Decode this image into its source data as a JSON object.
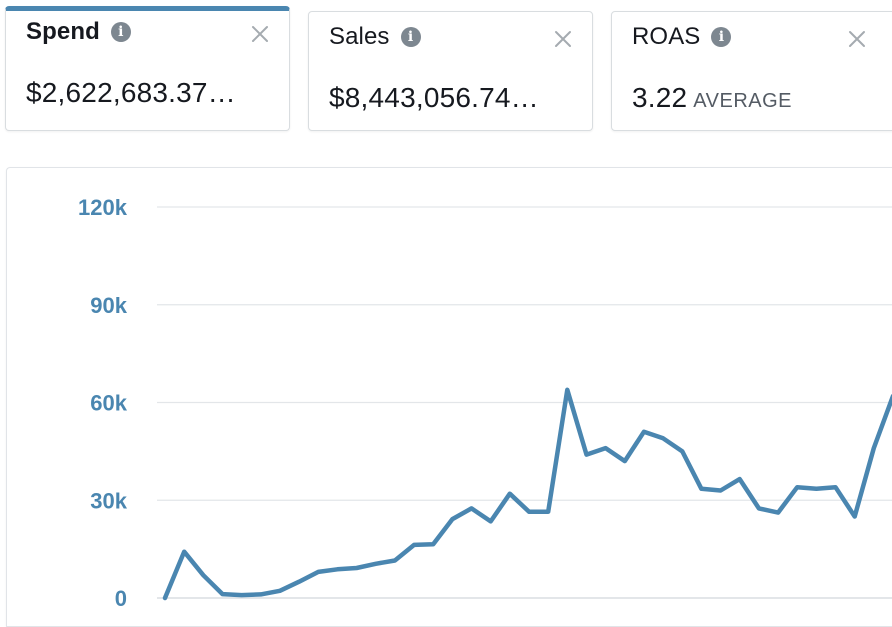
{
  "metrics": [
    {
      "title": "Spend",
      "value": "$2,622,683.37…",
      "unit": "",
      "active": true,
      "info_icon": "info-icon",
      "close_icon": "close-icon"
    },
    {
      "title": "Sales",
      "value": "$8,443,056.74…",
      "unit": "",
      "active": false,
      "info_icon": "info-icon",
      "close_icon": "close-icon"
    },
    {
      "title": "ROAS",
      "value": "3.22",
      "unit": "AVERAGE",
      "active": false,
      "info_icon": "info-icon",
      "close_icon": "close-icon"
    }
  ],
  "colors": {
    "accent": "#4a86b0",
    "line": "#4a86b0",
    "grid": "#e3e6e9",
    "text": "#16191f"
  },
  "chart_data": {
    "type": "line",
    "title": "",
    "xlabel": "",
    "ylabel": "",
    "ylim": [
      0,
      120000
    ],
    "y_ticks": [
      {
        "value": 0,
        "label": "0"
      },
      {
        "value": 30000,
        "label": "30k"
      },
      {
        "value": 60000,
        "label": "60k"
      },
      {
        "value": 90000,
        "label": "90k"
      },
      {
        "value": 120000,
        "label": "120k"
      }
    ],
    "grid": true,
    "series": [
      {
        "values": [
          0,
          14200,
          7000,
          1200,
          900,
          1100,
          2200,
          5000,
          8000,
          8800,
          9200,
          10500,
          11500,
          16300,
          16500,
          24200,
          27500,
          23500,
          32000,
          26500,
          26500,
          63900,
          44000,
          46000,
          42000,
          51000,
          49000,
          45000,
          33500,
          33000,
          36500,
          27500,
          26200,
          34000,
          33500,
          34000,
          25000,
          46000,
          62000
        ]
      }
    ]
  }
}
